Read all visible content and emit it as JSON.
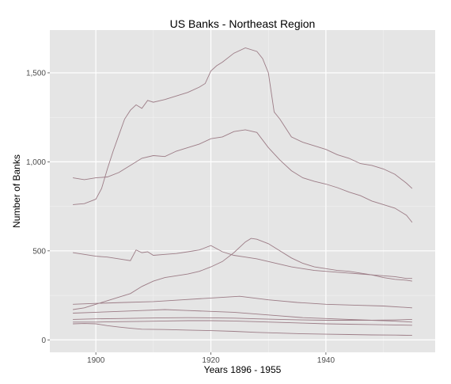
{
  "chart_data": {
    "type": "line",
    "title": "US Banks - Northeast Region",
    "xlabel": "Years 1896 - 1955",
    "ylabel": "Number of Banks",
    "xlim": [
      1892,
      1959
    ],
    "ylim": [
      -70,
      1740
    ],
    "x_ticks": [
      1900,
      1920,
      1940
    ],
    "x_tick_labels": [
      "1900",
      "1920",
      "1940"
    ],
    "y_ticks": [
      0,
      500,
      1000,
      1500
    ],
    "y_tick_labels": [
      "0",
      "500",
      "1,000",
      "1,500"
    ],
    "grid": true,
    "line_color": "#9c7c86",
    "background": "#e5e5e5",
    "series": [
      {
        "x": [
          1896,
          1898,
          1900,
          1901,
          1902,
          1903,
          1904,
          1905,
          1906,
          1907,
          1908,
          1909,
          1910,
          1912,
          1914,
          1916,
          1918,
          1919,
          1920,
          1921,
          1922,
          1924,
          1926,
          1928,
          1929,
          1930,
          1931,
          1932,
          1934,
          1936,
          1938,
          1940,
          1942,
          1944,
          1946,
          1948,
          1950,
          1952,
          1954,
          1955
        ],
        "values": [
          760,
          765,
          790,
          850,
          960,
          1060,
          1150,
          1240,
          1290,
          1320,
          1300,
          1345,
          1335,
          1350,
          1370,
          1390,
          1420,
          1440,
          1510,
          1540,
          1560,
          1610,
          1640,
          1620,
          1580,
          1500,
          1280,
          1240,
          1140,
          1110,
          1090,
          1070,
          1040,
          1020,
          990,
          980,
          960,
          930,
          880,
          850
        ]
      },
      {
        "x": [
          1896,
          1898,
          1900,
          1902,
          1904,
          1906,
          1908,
          1910,
          1912,
          1914,
          1916,
          1918,
          1920,
          1922,
          1924,
          1926,
          1928,
          1930,
          1932,
          1934,
          1936,
          1938,
          1940,
          1942,
          1944,
          1946,
          1948,
          1950,
          1952,
          1954,
          1955
        ],
        "values": [
          910,
          900,
          910,
          915,
          940,
          980,
          1020,
          1035,
          1030,
          1060,
          1080,
          1100,
          1130,
          1140,
          1170,
          1180,
          1165,
          1080,
          1010,
          950,
          910,
          890,
          875,
          855,
          830,
          810,
          780,
          760,
          740,
          700,
          660
        ]
      },
      {
        "x": [
          1896,
          1898,
          1900,
          1902,
          1904,
          1906,
          1907,
          1908,
          1909,
          1910,
          1912,
          1914,
          1916,
          1918,
          1920,
          1922,
          1924,
          1926,
          1928,
          1930,
          1932,
          1934,
          1936,
          1938,
          1940,
          1942,
          1944,
          1946,
          1948,
          1950,
          1952,
          1954,
          1955
        ],
        "values": [
          490,
          480,
          470,
          465,
          455,
          445,
          505,
          490,
          495,
          475,
          480,
          485,
          495,
          505,
          530,
          495,
          475,
          465,
          455,
          440,
          425,
          410,
          400,
          390,
          385,
          380,
          375,
          370,
          365,
          360,
          355,
          345,
          345
        ]
      },
      {
        "x": [
          1896,
          1898,
          1900,
          1902,
          1904,
          1906,
          1908,
          1910,
          1912,
          1914,
          1916,
          1918,
          1920,
          1922,
          1924,
          1926,
          1927,
          1928,
          1930,
          1932,
          1934,
          1936,
          1938,
          1940,
          1942,
          1944,
          1946,
          1948,
          1950,
          1952,
          1954,
          1955
        ],
        "values": [
          170,
          180,
          200,
          220,
          240,
          260,
          300,
          330,
          350,
          360,
          370,
          385,
          410,
          440,
          490,
          550,
          570,
          565,
          540,
          500,
          460,
          430,
          410,
          400,
          390,
          385,
          375,
          365,
          350,
          340,
          335,
          330
        ]
      },
      {
        "x": [
          1896,
          1900,
          1905,
          1910,
          1915,
          1920,
          1925,
          1930,
          1935,
          1940,
          1945,
          1950,
          1955
        ],
        "values": [
          200,
          205,
          210,
          215,
          225,
          235,
          245,
          225,
          210,
          200,
          195,
          190,
          180
        ]
      },
      {
        "x": [
          1896,
          1900,
          1904,
          1908,
          1912,
          1916,
          1920,
          1924,
          1928,
          1932,
          1936,
          1940,
          1944,
          1948,
          1952,
          1955
        ],
        "values": [
          150,
          155,
          160,
          165,
          170,
          165,
          160,
          155,
          145,
          135,
          125,
          120,
          115,
          110,
          105,
          100
        ]
      },
      {
        "x": [
          1896,
          1900,
          1904,
          1908,
          1912,
          1916,
          1920,
          1924,
          1928,
          1932,
          1936,
          1940,
          1944,
          1948,
          1952,
          1955
        ],
        "values": [
          115,
          118,
          120,
          122,
          124,
          125,
          124,
          122,
          118,
          115,
          112,
          110,
          110,
          110,
          112,
          115
        ]
      },
      {
        "x": [
          1896,
          1900,
          1904,
          1908,
          1912,
          1916,
          1920,
          1924,
          1928,
          1932,
          1936,
          1940,
          1944,
          1948,
          1952,
          1955
        ],
        "values": [
          100,
          100,
          102,
          104,
          106,
          108,
          108,
          106,
          102,
          98,
          94,
          90,
          88,
          86,
          84,
          82
        ]
      },
      {
        "x": [
          1896,
          1898,
          1900,
          1902,
          1904,
          1906,
          1908,
          1912,
          1916,
          1920,
          1924,
          1928,
          1932,
          1936,
          1940,
          1944,
          1948,
          1952,
          1955
        ],
        "values": [
          90,
          92,
          90,
          80,
          72,
          65,
          60,
          58,
          55,
          52,
          48,
          42,
          38,
          34,
          32,
          30,
          28,
          27,
          25
        ]
      }
    ]
  }
}
